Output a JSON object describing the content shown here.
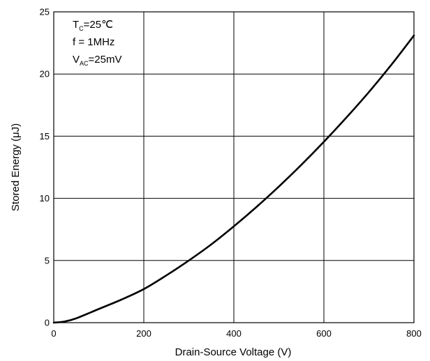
{
  "chart_data": {
    "type": "line",
    "title": "",
    "xlabel": "Drain-Source Voltage (V)",
    "ylabel": "Stored Energy (μJ)",
    "xlim": [
      0,
      800
    ],
    "ylim": [
      0,
      25
    ],
    "x_ticks": [
      "0",
      "200",
      "400",
      "600",
      "800"
    ],
    "y_ticks": [
      "0",
      "5",
      "10",
      "15",
      "20",
      "25"
    ],
    "grid": true,
    "annotations": {
      "tc_symbol": "T",
      "tc_sub": "C",
      "tc_value": "=25℃",
      "freq": "f = 1MHz",
      "vac_symbol": "V",
      "vac_sub": "AC",
      "vac_value": "=25mV"
    },
    "series": [
      {
        "color": "#000000",
        "x": [
          0,
          25,
          50,
          100,
          150,
          200,
          250,
          300,
          350,
          400,
          450,
          500,
          550,
          600,
          650,
          700,
          750,
          800
        ],
        "y": [
          0,
          0.1,
          0.35,
          1.1,
          1.85,
          2.7,
          3.8,
          5.0,
          6.3,
          7.75,
          9.3,
          10.95,
          12.7,
          14.55,
          16.5,
          18.55,
          20.75,
          23.1
        ]
      }
    ]
  }
}
